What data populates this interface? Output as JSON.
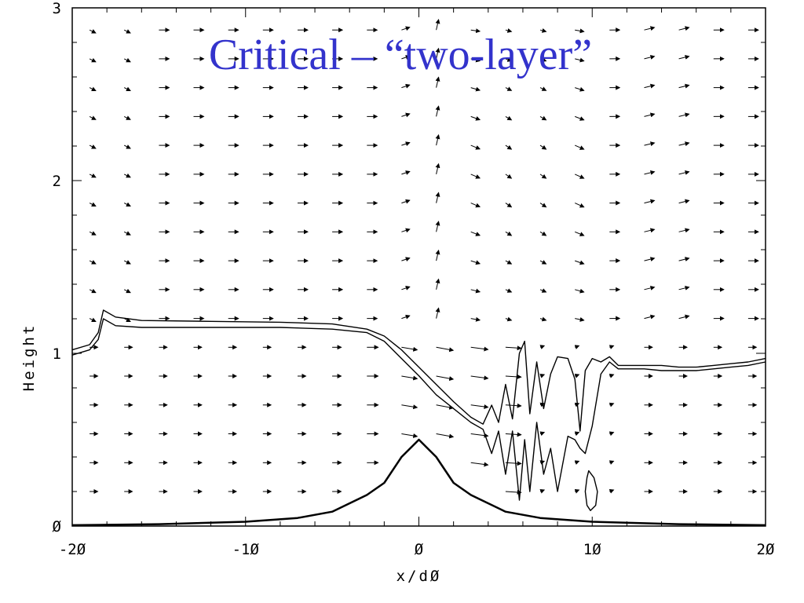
{
  "chart_data": {
    "type": "line",
    "title": "Critical – “two-layer”",
    "xlabel": "x/dØ",
    "ylabel": "Height",
    "xlim": [
      -20,
      20
    ],
    "ylim": [
      0,
      3
    ],
    "x_ticks": [
      -20,
      -10,
      0,
      10,
      20
    ],
    "x_tick_labels": [
      "-2Ø",
      "-1Ø",
      "Ø",
      "1Ø",
      "2Ø"
    ],
    "y_ticks": [
      0,
      1,
      2,
      3
    ],
    "y_tick_labels": [
      "Ø",
      "1",
      "2",
      "3"
    ],
    "grid": false,
    "series": [
      {
        "kind": "terrain",
        "x": [
          -20,
          -15,
          -10,
          -7,
          -5,
          -3,
          -2,
          -1,
          0,
          1,
          2,
          3,
          5,
          7,
          10,
          15,
          20
        ],
        "y": [
          0.005,
          0.011,
          0.025,
          0.047,
          0.083,
          0.18,
          0.25,
          0.4,
          0.5,
          0.4,
          0.25,
          0.18,
          0.083,
          0.047,
          0.025,
          0.011,
          0.005
        ]
      },
      {
        "kind": "isentrope-upper",
        "x": [
          -20,
          -19,
          -18.5,
          -18.2,
          -17.5,
          -16,
          -12,
          -8,
          -5,
          -3,
          -2,
          -1,
          0,
          1,
          2,
          3,
          3.7,
          4.2,
          4.6,
          5,
          5.4,
          5.8,
          6.1,
          6.4,
          6.8,
          7.2,
          7.6,
          8,
          8.6,
          9,
          9.3,
          9.6,
          10,
          10.5,
          11,
          11.5,
          12,
          13,
          14,
          15,
          16,
          17,
          18,
          19,
          20
        ],
        "y": [
          1.02,
          1.05,
          1.12,
          1.25,
          1.21,
          1.19,
          1.185,
          1.18,
          1.17,
          1.14,
          1.1,
          1.02,
          0.92,
          0.82,
          0.72,
          0.63,
          0.59,
          0.7,
          0.6,
          0.82,
          0.62,
          1.0,
          1.07,
          0.65,
          0.95,
          0.68,
          0.88,
          0.98,
          0.97,
          0.85,
          0.55,
          0.9,
          0.97,
          0.95,
          0.98,
          0.93,
          0.93,
          0.93,
          0.93,
          0.92,
          0.92,
          0.93,
          0.94,
          0.95,
          0.97
        ]
      },
      {
        "kind": "isentrope-lower",
        "x": [
          -20,
          -19,
          -18.5,
          -18.2,
          -17.5,
          -16,
          -12,
          -8,
          -5,
          -3,
          -2,
          -1,
          0,
          1,
          2,
          3,
          3.7,
          4.2,
          4.6,
          5,
          5.4,
          5.8,
          6.1,
          6.4,
          6.8,
          7.2,
          7.6,
          8,
          8.6,
          9,
          9.3,
          9.6,
          10,
          10.5,
          11,
          11.5,
          12,
          13,
          14,
          15,
          16,
          17,
          18,
          19,
          20
        ],
        "y": [
          0.99,
          1.02,
          1.08,
          1.2,
          1.16,
          1.15,
          1.15,
          1.15,
          1.14,
          1.12,
          1.07,
          0.97,
          0.87,
          0.76,
          0.68,
          0.6,
          0.56,
          0.42,
          0.55,
          0.3,
          0.55,
          0.15,
          0.5,
          0.2,
          0.6,
          0.3,
          0.45,
          0.2,
          0.52,
          0.5,
          0.45,
          0.42,
          0.58,
          0.88,
          0.95,
          0.91,
          0.91,
          0.91,
          0.9,
          0.9,
          0.9,
          0.91,
          0.92,
          0.93,
          0.95
        ]
      },
      {
        "kind": "closed-contour",
        "x": [
          9.8,
          10.1,
          10.3,
          10.2,
          9.9,
          9.7,
          9.6,
          9.7,
          9.8
        ],
        "y": [
          0.32,
          0.28,
          0.2,
          0.12,
          0.09,
          0.12,
          0.2,
          0.28,
          0.32
        ]
      }
    ],
    "vector_field": {
      "description_units": "arrows of wind vectors (u, w) in data units",
      "x_spacing": 2,
      "y_spacing": 0.167
    }
  }
}
